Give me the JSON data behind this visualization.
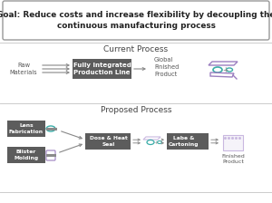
{
  "title_box": "Goal: Reduce costs and increase flexibility by decoupling the\ncontinuous manufacturing process",
  "current_process_label": "Current Process",
  "proposed_process_label": "Proposed Process",
  "current_box": "Fully Integrated\nProduction Line",
  "current_left_label": "Raw\nMaterials",
  "current_right_label": "Global\nFinished\nProduct",
  "proposed_box_lens": "Lens\nFabrication",
  "proposed_box_blister": "Blister\nMolding",
  "proposed_box_dose": "Dose & Heat\nSeal",
  "proposed_box_labe": "Labe &\nCartoning",
  "proposed_right_label": "Finished\nProduct",
  "bg_color": "#ffffff",
  "box_dark": "#5c5c5c",
  "separator_color": "#cccccc",
  "title_border_color": "#999999",
  "arrow_color": "#888888",
  "section_label_color": "#444444",
  "teal": "#3aada8",
  "purple": "#9b7fc0",
  "purple_light": "#c9b8e0"
}
